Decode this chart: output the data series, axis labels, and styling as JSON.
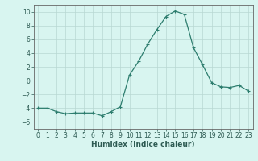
{
  "x": [
    0,
    1,
    2,
    3,
    4,
    5,
    6,
    7,
    8,
    9,
    10,
    11,
    12,
    13,
    14,
    15,
    16,
    17,
    18,
    19,
    20,
    21,
    22,
    23
  ],
  "y": [
    -4.0,
    -4.0,
    -4.5,
    -4.8,
    -4.7,
    -4.7,
    -4.7,
    -5.1,
    -4.5,
    -3.8,
    0.8,
    2.8,
    5.3,
    7.4,
    9.3,
    10.1,
    9.6,
    4.8,
    2.3,
    -0.3,
    -0.9,
    -1.0,
    -0.7,
    -1.5
  ],
  "line_color": "#2d7d6e",
  "marker": "+",
  "markersize": 3,
  "linewidth": 0.9,
  "xlabel": "Humidex (Indice chaleur)",
  "xlabel_fontsize": 6.5,
  "xlabel_fontweight": "bold",
  "bg_color": "#d8f5f0",
  "grid_color": "#b8d8d2",
  "axis_color": "#666666",
  "tick_color": "#2d5a52",
  "ylim": [
    -7,
    11
  ],
  "xlim": [
    -0.5,
    23.5
  ],
  "yticks": [
    -6,
    -4,
    -2,
    0,
    2,
    4,
    6,
    8,
    10
  ],
  "xticks": [
    0,
    1,
    2,
    3,
    4,
    5,
    6,
    7,
    8,
    9,
    10,
    11,
    12,
    13,
    14,
    15,
    16,
    17,
    18,
    19,
    20,
    21,
    22,
    23
  ],
  "tick_fontsize": 5.5
}
